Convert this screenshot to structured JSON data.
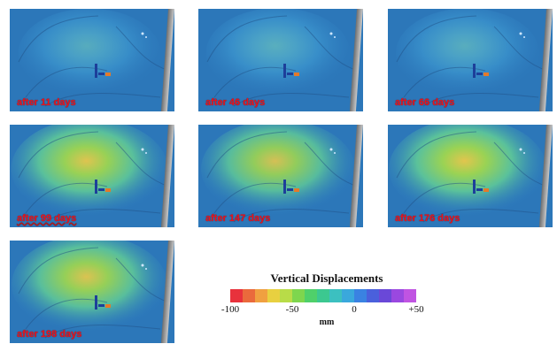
{
  "panels": [
    {
      "label": "after 11 days",
      "heat": 0.05,
      "wavy_underline": false
    },
    {
      "label": "after 46 days",
      "heat": 0.15,
      "wavy_underline": false
    },
    {
      "label": "after 66 days",
      "heat": 0.1,
      "wavy_underline": false
    },
    {
      "label": "after 99 days",
      "heat": 0.85,
      "wavy_underline": true
    },
    {
      "label": "after 147 days",
      "heat": 0.7,
      "wavy_underline": false
    },
    {
      "label": "after 176 days",
      "heat": 0.9,
      "wavy_underline": false
    },
    {
      "label": "after 198 days",
      "heat": 0.8,
      "wavy_underline": false
    }
  ],
  "legend": {
    "title": "Vertical Displacements",
    "unit": "mm",
    "ticks": [
      "-100",
      "-50",
      "0",
      "+50"
    ],
    "tick_values": [
      -100,
      -50,
      0,
      50
    ],
    "range": [
      -100,
      50
    ],
    "colors": [
      "#e8323c",
      "#ea6a3c",
      "#f0a040",
      "#e8d040",
      "#b8dc48",
      "#7ed64e",
      "#4fd06a",
      "#3cc890",
      "#3cc0c0",
      "#3aa8dc",
      "#3a82e2",
      "#4a60dc",
      "#6a48d8",
      "#9a48e0",
      "#c054e2"
    ]
  },
  "colors": {
    "label_red": "#e8141e",
    "map_blue": "#2f7fc2"
  }
}
